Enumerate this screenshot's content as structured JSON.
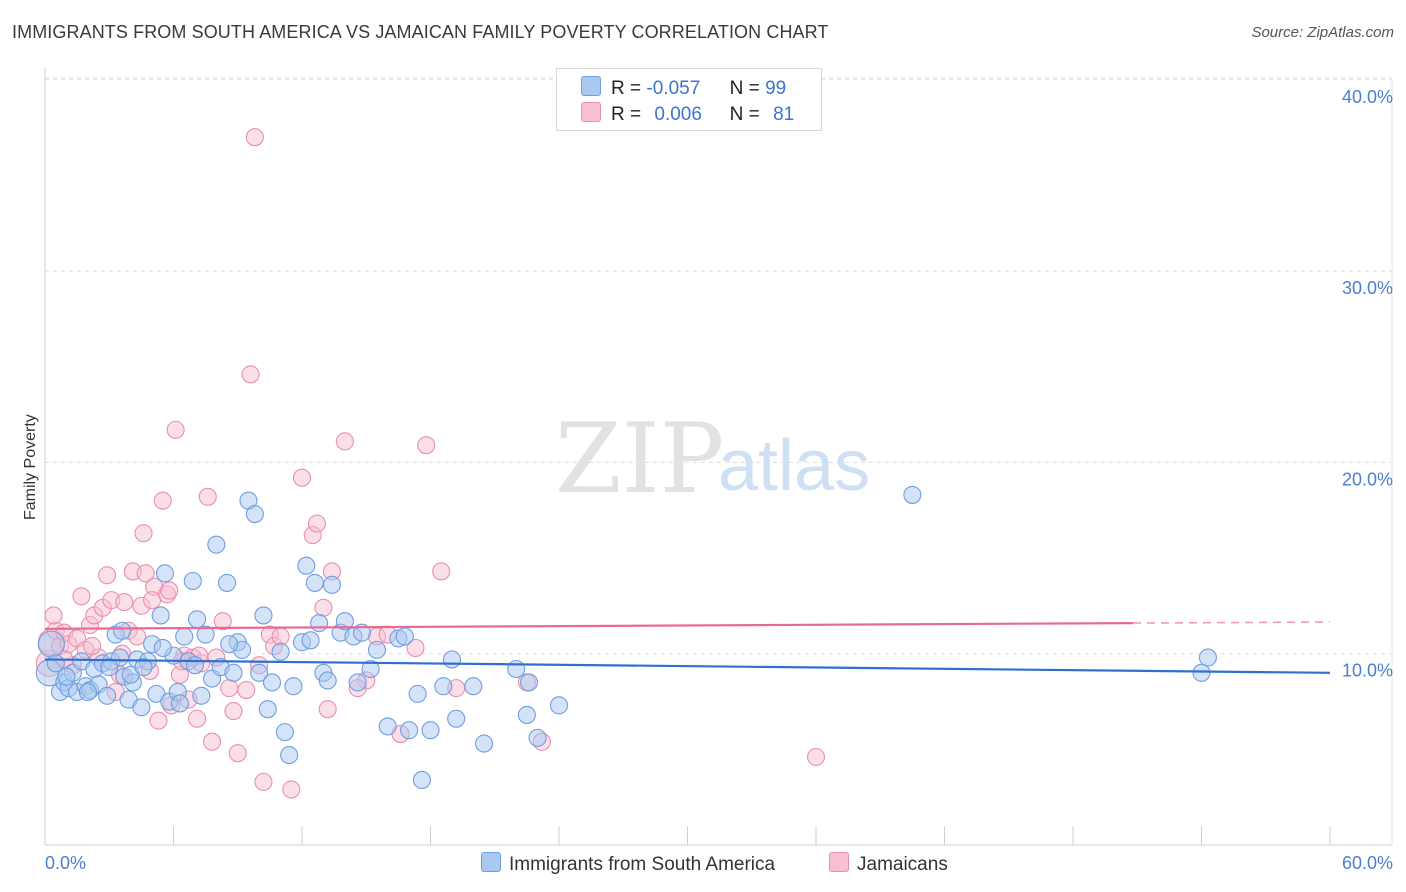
{
  "header": {
    "title": "IMMIGRANTS FROM SOUTH AMERICA VS JAMAICAN FAMILY POVERTY CORRELATION CHART",
    "source": "Source: ZipAtlas.com"
  },
  "watermark": {
    "zip": "ZIP",
    "atlas": "atlas"
  },
  "legend": {
    "rows": [
      {
        "r_label": "R =",
        "r_value": "-0.057",
        "n_label": "N =",
        "n_value": "99"
      },
      {
        "r_label": "R =",
        "r_value": "0.006",
        "n_label": "N =",
        "n_value": "81"
      }
    ]
  },
  "colors": {
    "blue_fill": "#aac8f0",
    "blue_stroke": "#6f9ee0",
    "blue_line": "#2f6fd0",
    "pink_fill": "#f6bfd2",
    "pink_stroke": "#ea8fae",
    "pink_line": "#e86a93",
    "axis_text": "#4a7fcf",
    "grid": "#dcdcdc"
  },
  "chart_data": {
    "type": "scatter",
    "title": "IMMIGRANTS FROM SOUTH AMERICA VS JAMAICAN FAMILY POVERTY CORRELATION CHART",
    "xlabel": "",
    "ylabel": "Family Poverty",
    "xlim": [
      0,
      60
    ],
    "ylim": [
      0,
      40
    ],
    "x_ticks": [
      "0.0%",
      "60.0%"
    ],
    "y_ticks": [
      "10.0%",
      "20.0%",
      "30.0%",
      "40.0%"
    ],
    "y_tick_values": [
      10,
      20,
      30,
      40
    ],
    "grid": true,
    "legend_position": "top-center",
    "series": [
      {
        "name": "Immigrants from South America",
        "r": -0.057,
        "n": 99,
        "trend": {
          "x": [
            0,
            60
          ],
          "y": [
            9.7,
            9.0
          ]
        },
        "points": [
          [
            0.2,
            9.0
          ],
          [
            0.3,
            10.5
          ],
          [
            0.5,
            9.5
          ],
          [
            0.7,
            8.0
          ],
          [
            0.9,
            8.5
          ],
          [
            1.1,
            8.2
          ],
          [
            1.3,
            9.0
          ],
          [
            1.5,
            8.0
          ],
          [
            1.7,
            9.6
          ],
          [
            1.9,
            8.3
          ],
          [
            2.1,
            8.1
          ],
          [
            2.3,
            9.2
          ],
          [
            2.5,
            8.4
          ],
          [
            2.7,
            9.5
          ],
          [
            2.9,
            7.8
          ],
          [
            3.1,
            9.6
          ],
          [
            3.3,
            11.0
          ],
          [
            3.5,
            9.8
          ],
          [
            3.7,
            8.8
          ],
          [
            3.9,
            7.6
          ],
          [
            4.1,
            8.5
          ],
          [
            4.3,
            9.7
          ],
          [
            4.5,
            7.2
          ],
          [
            4.8,
            9.6
          ],
          [
            5.0,
            10.5
          ],
          [
            5.2,
            7.9
          ],
          [
            5.4,
            12.0
          ],
          [
            5.6,
            14.2
          ],
          [
            5.8,
            7.5
          ],
          [
            6.0,
            9.9
          ],
          [
            6.2,
            8.0
          ],
          [
            6.5,
            10.9
          ],
          [
            6.7,
            9.6
          ],
          [
            6.9,
            13.8
          ],
          [
            7.1,
            11.8
          ],
          [
            7.3,
            7.8
          ],
          [
            7.5,
            11.0
          ],
          [
            7.8,
            8.7
          ],
          [
            8.0,
            15.7
          ],
          [
            8.2,
            9.3
          ],
          [
            8.5,
            13.7
          ],
          [
            8.8,
            9.0
          ],
          [
            9.0,
            10.6
          ],
          [
            9.2,
            10.2
          ],
          [
            9.5,
            18.0
          ],
          [
            9.8,
            17.3
          ],
          [
            10.0,
            9.0
          ],
          [
            10.2,
            12.0
          ],
          [
            10.4,
            7.1
          ],
          [
            10.6,
            8.5
          ],
          [
            11.0,
            10.1
          ],
          [
            11.2,
            5.9
          ],
          [
            11.4,
            4.7
          ],
          [
            11.6,
            8.3
          ],
          [
            12.0,
            10.6
          ],
          [
            12.2,
            14.6
          ],
          [
            12.4,
            10.7
          ],
          [
            12.8,
            11.6
          ],
          [
            13.0,
            9.0
          ],
          [
            13.2,
            8.6
          ],
          [
            13.4,
            13.6
          ],
          [
            13.8,
            11.1
          ],
          [
            14.0,
            11.7
          ],
          [
            14.4,
            10.9
          ],
          [
            14.6,
            8.5
          ],
          [
            14.8,
            11.1
          ],
          [
            15.2,
            9.2
          ],
          [
            15.5,
            10.2
          ],
          [
            16.0,
            6.2
          ],
          [
            16.5,
            10.8
          ],
          [
            17.0,
            6.0
          ],
          [
            17.4,
            7.9
          ],
          [
            17.6,
            3.4
          ],
          [
            18.0,
            6.0
          ],
          [
            18.6,
            8.3
          ],
          [
            19.0,
            9.7
          ],
          [
            19.2,
            6.6
          ],
          [
            20.0,
            8.3
          ],
          [
            20.5,
            5.3
          ],
          [
            22.0,
            9.2
          ],
          [
            22.5,
            6.8
          ],
          [
            22.6,
            8.5
          ],
          [
            23.0,
            5.6
          ],
          [
            24.0,
            7.3
          ],
          [
            1.0,
            8.8
          ],
          [
            2.0,
            8.0
          ],
          [
            3.0,
            9.3
          ],
          [
            4.0,
            8.9
          ],
          [
            5.5,
            10.3
          ],
          [
            6.3,
            7.4
          ],
          [
            7.0,
            9.4
          ],
          [
            8.6,
            10.5
          ],
          [
            12.6,
            13.7
          ],
          [
            16.8,
            10.9
          ],
          [
            40.5,
            18.3
          ],
          [
            54.0,
            9.0
          ],
          [
            54.3,
            9.8
          ],
          [
            3.6,
            11.2
          ],
          [
            4.6,
            9.3
          ]
        ]
      },
      {
        "name": "Jamaicans",
        "r": 0.006,
        "n": 81,
        "trend": {
          "x": [
            0,
            50.8
          ],
          "y": [
            11.3,
            11.6
          ],
          "dashed_to_x": 60
        },
        "points": [
          [
            0.2,
            9.5
          ],
          [
            0.3,
            10.6
          ],
          [
            0.5,
            11.2
          ],
          [
            0.7,
            10.4
          ],
          [
            0.9,
            11.1
          ],
          [
            1.1,
            10.5
          ],
          [
            1.3,
            9.4
          ],
          [
            1.5,
            10.8
          ],
          [
            1.7,
            13.0
          ],
          [
            1.9,
            10.2
          ],
          [
            2.1,
            11.5
          ],
          [
            2.3,
            12.0
          ],
          [
            2.5,
            9.8
          ],
          [
            2.7,
            12.4
          ],
          [
            2.9,
            14.1
          ],
          [
            3.1,
            12.8
          ],
          [
            3.3,
            8.0
          ],
          [
            3.5,
            8.9
          ],
          [
            3.7,
            12.7
          ],
          [
            3.9,
            11.2
          ],
          [
            4.1,
            14.3
          ],
          [
            4.3,
            10.9
          ],
          [
            4.5,
            12.5
          ],
          [
            4.7,
            14.2
          ],
          [
            4.9,
            9.1
          ],
          [
            5.1,
            13.5
          ],
          [
            5.3,
            6.5
          ],
          [
            5.5,
            18.0
          ],
          [
            5.7,
            13.1
          ],
          [
            5.9,
            7.3
          ],
          [
            6.1,
            21.7
          ],
          [
            6.3,
            8.9
          ],
          [
            6.5,
            9.9
          ],
          [
            6.7,
            7.6
          ],
          [
            6.9,
            9.8
          ],
          [
            7.1,
            6.6
          ],
          [
            7.3,
            9.5
          ],
          [
            7.6,
            18.2
          ],
          [
            7.8,
            5.4
          ],
          [
            8.0,
            9.8
          ],
          [
            8.3,
            11.7
          ],
          [
            8.6,
            8.2
          ],
          [
            9.0,
            4.8
          ],
          [
            9.6,
            24.6
          ],
          [
            10.0,
            9.4
          ],
          [
            10.2,
            3.3
          ],
          [
            10.5,
            11.0
          ],
          [
            10.7,
            10.4
          ],
          [
            11.0,
            10.9
          ],
          [
            11.5,
            2.9
          ],
          [
            12.0,
            19.2
          ],
          [
            12.5,
            16.2
          ],
          [
            12.7,
            16.8
          ],
          [
            13.0,
            12.4
          ],
          [
            13.2,
            7.1
          ],
          [
            13.4,
            14.3
          ],
          [
            14.0,
            21.1
          ],
          [
            15.0,
            8.6
          ],
          [
            15.5,
            10.9
          ],
          [
            16.0,
            11.0
          ],
          [
            16.6,
            5.8
          ],
          [
            17.3,
            10.3
          ],
          [
            17.8,
            20.9
          ],
          [
            18.5,
            14.3
          ],
          [
            19.2,
            8.2
          ],
          [
            22.5,
            8.5
          ],
          [
            23.2,
            5.4
          ],
          [
            36.0,
            4.6
          ],
          [
            0.9,
            9.7
          ],
          [
            2.2,
            10.4
          ],
          [
            3.6,
            10.0
          ],
          [
            4.6,
            16.3
          ],
          [
            5.0,
            12.8
          ],
          [
            5.8,
            13.3
          ],
          [
            6.4,
            9.6
          ],
          [
            7.2,
            9.9
          ],
          [
            8.8,
            7.0
          ],
          [
            9.4,
            8.1
          ],
          [
            14.6,
            8.2
          ],
          [
            0.4,
            12.0
          ],
          [
            9.8,
            37.0
          ]
        ]
      }
    ]
  },
  "bottom_legend": {
    "items": [
      {
        "label": "Immigrants from South America"
      },
      {
        "label": "Jamaicans"
      }
    ]
  }
}
